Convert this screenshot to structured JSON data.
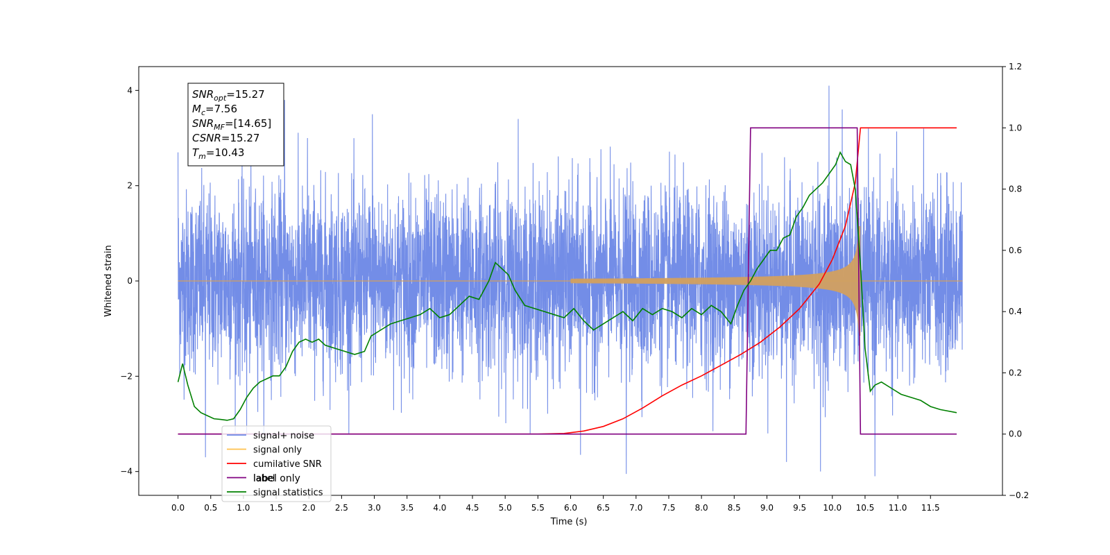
{
  "chart_data": {
    "type": "line",
    "xlabel": "Time (s)",
    "ylabel": "Whitened strain",
    "xlim": [
      -0.6,
      12.6
    ],
    "ylim": [
      -4.5,
      4.5
    ],
    "y2lim": [
      -0.2,
      1.2
    ],
    "x_ticks": [
      "0.0",
      "0.5",
      "1.0",
      "1.5",
      "2.0",
      "2.5",
      "3.0",
      "3.5",
      "4.0",
      "4.5",
      "5.0",
      "5.5",
      "6.0",
      "6.5",
      "7.0",
      "7.5",
      "8.0",
      "8.5",
      "9.0",
      "9.5",
      "10.0",
      "10.5",
      "11.0",
      "11.5"
    ],
    "y_ticks": [
      "4",
      "2",
      "0",
      "−2",
      "−4"
    ],
    "y2_ticks": [
      "1.2",
      "1.0",
      "0.8",
      "0.6",
      "0.4",
      "0.2",
      "0.0",
      "−0.2"
    ],
    "annotation": {
      "lines": [
        {
          "base": "SNR",
          "sub": "opt",
          "rest": "=15.27"
        },
        {
          "base": "M",
          "sub": "c",
          "rest": "=7.56"
        },
        {
          "base": "SNR",
          "sub": "MF",
          "rest": "=[14.65]"
        },
        {
          "base": "CSNR",
          "sub": "",
          "rest": "=15.27"
        },
        {
          "base": "T",
          "sub": "m",
          "rest": "=10.43"
        }
      ]
    },
    "legend": {
      "position": "lower-left",
      "entries": [
        {
          "label": "signal+ noise",
          "color": "#6b87e6"
        },
        {
          "label": "signal only",
          "color": "#ffc04d"
        },
        {
          "label": "cumilative SNR",
          "color": "#ff0000"
        },
        {
          "label": "label",
          "color": "#800080"
        },
        {
          "label": "signal statistics",
          "color": "#008000"
        }
      ],
      "hidden_text": "label only"
    },
    "series": [
      {
        "name": "signal+ noise",
        "axis": "left",
        "color": "#6b87e6",
        "style": "white noise, typical amplitude ~ +-2.4, peaks near 4",
        "spikes": [
          [
            0.0,
            2.7
          ],
          [
            0.42,
            -3.7
          ],
          [
            1.05,
            -3.2
          ],
          [
            1.63,
            3.8
          ],
          [
            1.98,
            3.0
          ],
          [
            2.97,
            3.5
          ],
          [
            5.2,
            3.4
          ],
          [
            6.15,
            -3.65
          ],
          [
            6.85,
            -4.05
          ],
          [
            9.3,
            -3.8
          ],
          [
            9.82,
            -4.0
          ],
          [
            9.95,
            4.1
          ],
          [
            10.15,
            3.6
          ],
          [
            10.65,
            -4.1
          ]
        ]
      },
      {
        "name": "signal only",
        "axis": "left",
        "color": "#d2a060",
        "envelope": {
          "t_start": 6.0,
          "t_merge": 10.43,
          "amp_max": 1.15
        }
      },
      {
        "name": "cumilative SNR",
        "axis": "right",
        "color": "#ff0000",
        "x": [
          0.0,
          5.5,
          5.9,
          6.2,
          6.5,
          6.8,
          7.1,
          7.4,
          7.7,
          8.0,
          8.3,
          8.6,
          8.9,
          9.2,
          9.5,
          9.8,
          10.0,
          10.2,
          10.35,
          10.43,
          10.45,
          11.9
        ],
        "y": [
          0.0,
          0.0,
          0.002,
          0.01,
          0.025,
          0.05,
          0.085,
          0.125,
          0.16,
          0.19,
          0.225,
          0.26,
          0.3,
          0.35,
          0.41,
          0.49,
          0.57,
          0.68,
          0.82,
          1.0,
          1.0,
          1.0
        ]
      },
      {
        "name": "label",
        "axis": "right",
        "color": "#800080",
        "x": [
          0.0,
          8.68,
          8.75,
          10.38,
          10.43,
          11.9
        ],
        "y": [
          0.0,
          0.0,
          1.0,
          1.0,
          0.0,
          0.0
        ]
      },
      {
        "name": "signal statistics",
        "axis": "right",
        "color": "#008000",
        "x": [
          0.0,
          0.07,
          0.15,
          0.25,
          0.35,
          0.45,
          0.55,
          0.65,
          0.75,
          0.85,
          0.95,
          1.05,
          1.15,
          1.25,
          1.35,
          1.45,
          1.55,
          1.65,
          1.75,
          1.85,
          1.95,
          2.05,
          2.15,
          2.25,
          2.4,
          2.55,
          2.7,
          2.85,
          2.95,
          3.1,
          3.25,
          3.4,
          3.55,
          3.7,
          3.85,
          4.0,
          4.15,
          4.3,
          4.45,
          4.6,
          4.75,
          4.85,
          4.95,
          5.05,
          5.15,
          5.3,
          5.45,
          5.6,
          5.75,
          5.9,
          6.05,
          6.2,
          6.35,
          6.5,
          6.65,
          6.8,
          6.95,
          7.1,
          7.25,
          7.4,
          7.55,
          7.7,
          7.85,
          8.0,
          8.15,
          8.3,
          8.45,
          8.55,
          8.65,
          8.75,
          8.85,
          8.95,
          9.05,
          9.15,
          9.25,
          9.35,
          9.45,
          9.55,
          9.65,
          9.75,
          9.85,
          9.95,
          10.05,
          10.12,
          10.2,
          10.28,
          10.35,
          10.43,
          10.5,
          10.58,
          10.65,
          10.75,
          10.9,
          11.05,
          11.2,
          11.35,
          11.5,
          11.65,
          11.9
        ],
        "y": [
          0.17,
          0.23,
          0.16,
          0.09,
          0.07,
          0.06,
          0.05,
          0.048,
          0.045,
          0.05,
          0.08,
          0.12,
          0.15,
          0.17,
          0.18,
          0.19,
          0.19,
          0.22,
          0.27,
          0.3,
          0.31,
          0.3,
          0.31,
          0.29,
          0.28,
          0.27,
          0.26,
          0.27,
          0.32,
          0.34,
          0.36,
          0.37,
          0.38,
          0.39,
          0.41,
          0.38,
          0.39,
          0.42,
          0.45,
          0.44,
          0.5,
          0.56,
          0.54,
          0.52,
          0.47,
          0.42,
          0.41,
          0.4,
          0.39,
          0.38,
          0.41,
          0.37,
          0.34,
          0.36,
          0.38,
          0.4,
          0.37,
          0.41,
          0.39,
          0.41,
          0.4,
          0.38,
          0.41,
          0.39,
          0.42,
          0.4,
          0.36,
          0.42,
          0.47,
          0.5,
          0.54,
          0.57,
          0.6,
          0.6,
          0.64,
          0.65,
          0.71,
          0.74,
          0.78,
          0.8,
          0.82,
          0.85,
          0.88,
          0.92,
          0.89,
          0.88,
          0.8,
          0.55,
          0.28,
          0.14,
          0.16,
          0.17,
          0.15,
          0.13,
          0.12,
          0.11,
          0.09,
          0.08,
          0.07
        ]
      }
    ]
  }
}
